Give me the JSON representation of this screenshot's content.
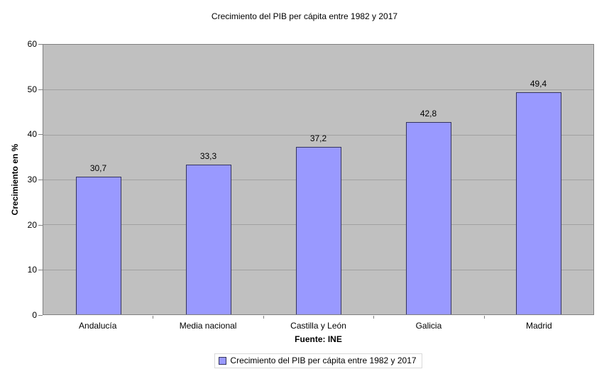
{
  "chart_data": {
    "type": "bar",
    "title": "Crecimiento del PIB per cápita entre 1982 y 2017",
    "categories": [
      "Andalucía",
      "Media nacional",
      "Castilla y León",
      "Galicia",
      "Madrid"
    ],
    "values": [
      30.7,
      33.3,
      37.2,
      42.8,
      49.4
    ],
    "value_labels": [
      "30,7",
      "33,3",
      "37,2",
      "42,8",
      "49,4"
    ],
    "xlabel": "Fuente: INE",
    "ylabel": "Crecimiento en %",
    "ylim": [
      0,
      60
    ],
    "ytick_step": 10,
    "ytick_labels": [
      "0",
      "10",
      "20",
      "30",
      "40",
      "50",
      "60"
    ],
    "grid": true,
    "legend": {
      "position": "bottom",
      "entries": [
        "Crecimiento del PIB per cápita entre 1982 y 2017"
      ]
    },
    "colors": {
      "bar_fill": "#9999FF",
      "bar_border": "#34345E",
      "plot_bg": "#C0C0C0",
      "plot_border": "#808080",
      "gridline": "#a0a0a0",
      "text": "#000000",
      "legend_border": "#D9D9D9"
    }
  }
}
